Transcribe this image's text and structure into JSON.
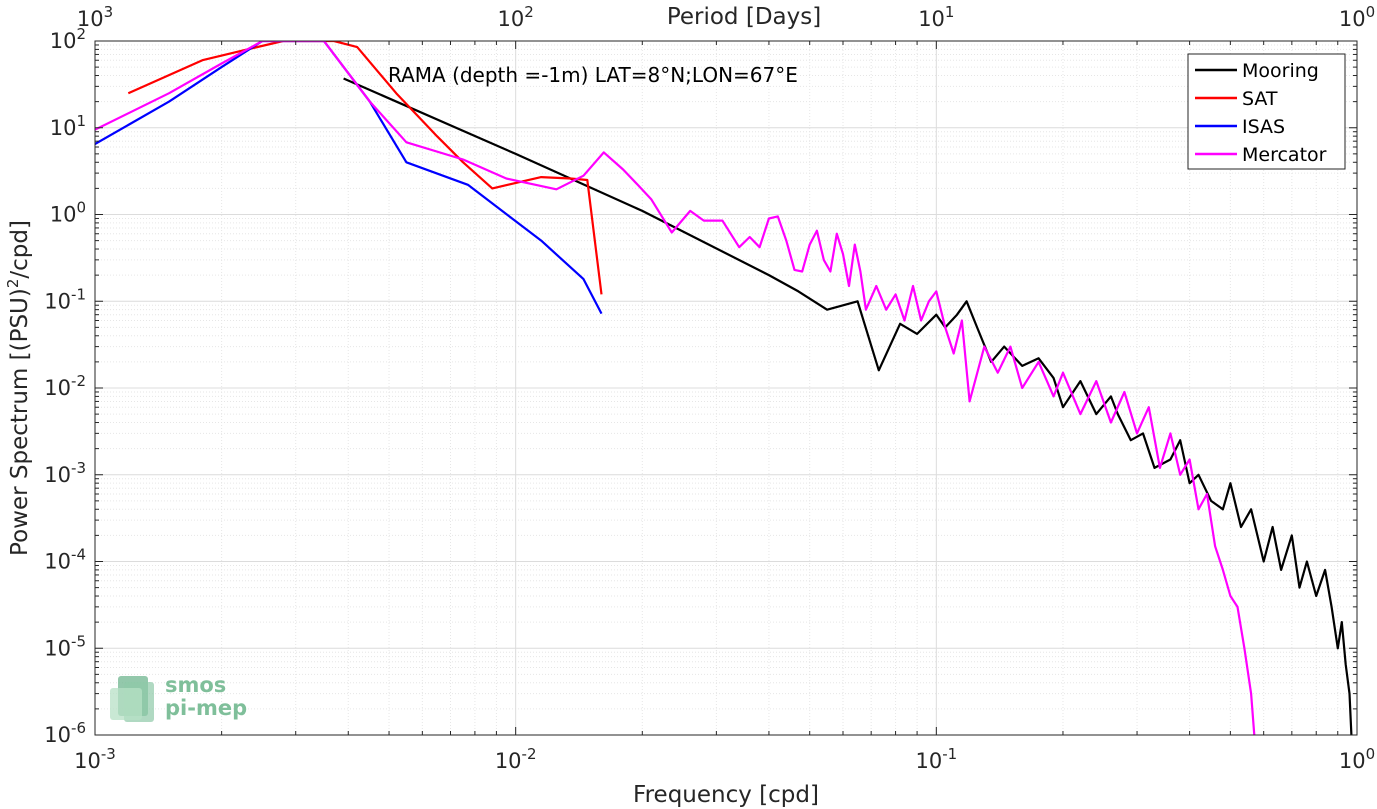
{
  "chart_data": {
    "type": "line",
    "xscale": "log",
    "yscale": "log",
    "xlim": [
      0.001,
      1
    ],
    "ylim": [
      1e-06,
      100
    ],
    "xlabel": "Frequency [cpd]",
    "ylabel": "Power Spectrum [(PSU)",
    "ylabel_sup": "2",
    "ylabel_tail": "/cpd]",
    "top_axis_label": "Period [Days]",
    "grid": true,
    "legend_position": "top-right",
    "annotation": "RAMA (depth =-1m) LAT=8°N;LON=67°E",
    "x_ticks": [
      {
        "value": 0.001,
        "base": "10",
        "exp": "-3"
      },
      {
        "value": 0.01,
        "base": "10",
        "exp": "-2"
      },
      {
        "value": 0.1,
        "base": "10",
        "exp": "-1"
      },
      {
        "value": 1,
        "base": "10",
        "exp": "0"
      }
    ],
    "top_ticks": [
      {
        "value": 0.001,
        "base": "10",
        "exp": "3"
      },
      {
        "value": 0.01,
        "base": "10",
        "exp": "2"
      },
      {
        "value": 0.1,
        "base": "10",
        "exp": "1"
      },
      {
        "value": 1,
        "base": "10",
        "exp": "0"
      }
    ],
    "y_ticks": [
      {
        "value": 100,
        "base": "10",
        "exp": "2"
      },
      {
        "value": 10,
        "base": "10",
        "exp": "1"
      },
      {
        "value": 1,
        "base": "10",
        "exp": "0"
      },
      {
        "value": 0.1,
        "base": "10",
        "exp": "-1"
      },
      {
        "value": 0.01,
        "base": "10",
        "exp": "-2"
      },
      {
        "value": 0.001,
        "base": "10",
        "exp": "-3"
      },
      {
        "value": 0.0001,
        "base": "10",
        "exp": "-4"
      },
      {
        "value": 1e-05,
        "base": "10",
        "exp": "-5"
      },
      {
        "value": 1e-06,
        "base": "10",
        "exp": "-6"
      }
    ],
    "series": [
      {
        "name": "Mooring",
        "color": "#000000",
        "points": [
          [
            0.0039,
            37
          ],
          [
            0.01,
            5
          ],
          [
            0.02,
            1.1
          ],
          [
            0.04,
            0.2
          ],
          [
            0.047,
            0.13
          ],
          [
            0.055,
            0.08
          ],
          [
            0.065,
            0.1
          ],
          [
            0.073,
            0.016
          ],
          [
            0.082,
            0.055
          ],
          [
            0.09,
            0.042
          ],
          [
            0.1,
            0.07
          ],
          [
            0.105,
            0.05
          ],
          [
            0.112,
            0.07
          ],
          [
            0.118,
            0.1
          ],
          [
            0.125,
            0.05
          ],
          [
            0.135,
            0.02
          ],
          [
            0.145,
            0.03
          ],
          [
            0.16,
            0.018
          ],
          [
            0.175,
            0.022
          ],
          [
            0.19,
            0.013
          ],
          [
            0.2,
            0.006
          ],
          [
            0.22,
            0.012
          ],
          [
            0.24,
            0.005
          ],
          [
            0.26,
            0.008
          ],
          [
            0.27,
            0.005
          ],
          [
            0.29,
            0.0025
          ],
          [
            0.31,
            0.003
          ],
          [
            0.33,
            0.0012
          ],
          [
            0.36,
            0.0015
          ],
          [
            0.38,
            0.0025
          ],
          [
            0.4,
            0.0008
          ],
          [
            0.42,
            0.001
          ],
          [
            0.45,
            0.0005
          ],
          [
            0.48,
            0.0004
          ],
          [
            0.5,
            0.0008
          ],
          [
            0.53,
            0.00025
          ],
          [
            0.56,
            0.0004
          ],
          [
            0.6,
            0.0001
          ],
          [
            0.63,
            0.00025
          ],
          [
            0.66,
            8e-05
          ],
          [
            0.7,
            0.0002
          ],
          [
            0.73,
            5e-05
          ],
          [
            0.76,
            0.0001
          ],
          [
            0.8,
            4e-05
          ],
          [
            0.84,
            8e-05
          ],
          [
            0.87,
            3e-05
          ],
          [
            0.9,
            1e-05
          ],
          [
            0.92,
            2e-05
          ],
          [
            0.94,
            6.5e-06
          ],
          [
            0.96,
            3e-06
          ],
          [
            0.97,
            1e-06
          ]
        ]
      },
      {
        "name": "SAT",
        "color": "#ff0000",
        "points": [
          [
            0.0012,
            25
          ],
          [
            0.0018,
            60
          ],
          [
            0.0023,
            80
          ],
          [
            0.0028,
            100
          ],
          [
            0.0037,
            100
          ],
          [
            0.0042,
            85
          ],
          [
            0.0052,
            25
          ],
          [
            0.0065,
            8
          ],
          [
            0.0075,
            4
          ],
          [
            0.0088,
            2
          ],
          [
            0.0115,
            2.7
          ],
          [
            0.0135,
            2.6
          ],
          [
            0.0148,
            2.5
          ],
          [
            0.016,
            0.12
          ]
        ]
      },
      {
        "name": "ISAS",
        "color": "#0000ff",
        "points": [
          [
            0.001,
            6.5
          ],
          [
            0.0015,
            20
          ],
          [
            0.002,
            50
          ],
          [
            0.0025,
            100
          ],
          [
            0.0035,
            100
          ],
          [
            0.0045,
            20
          ],
          [
            0.0055,
            4
          ],
          [
            0.0077,
            2.2
          ],
          [
            0.0115,
            0.5
          ],
          [
            0.0145,
            0.18
          ],
          [
            0.016,
            0.072
          ]
        ]
      },
      {
        "name": "Mercator",
        "color": "#ff00ff",
        "points": [
          [
            0.001,
            9.5
          ],
          [
            0.0015,
            25
          ],
          [
            0.002,
            55
          ],
          [
            0.0025,
            100
          ],
          [
            0.0035,
            100
          ],
          [
            0.0045,
            20
          ],
          [
            0.0055,
            6.8
          ],
          [
            0.0075,
            4.3
          ],
          [
            0.0095,
            2.6
          ],
          [
            0.0125,
            1.95
          ],
          [
            0.0145,
            2.8
          ],
          [
            0.0162,
            5.2
          ],
          [
            0.018,
            3.3
          ],
          [
            0.0195,
            2.2
          ],
          [
            0.021,
            1.5
          ],
          [
            0.0235,
            0.62
          ],
          [
            0.026,
            1.1
          ],
          [
            0.028,
            0.85
          ],
          [
            0.031,
            0.85
          ],
          [
            0.034,
            0.42
          ],
          [
            0.036,
            0.55
          ],
          [
            0.038,
            0.42
          ],
          [
            0.04,
            0.9
          ],
          [
            0.042,
            0.95
          ],
          [
            0.044,
            0.5
          ],
          [
            0.046,
            0.23
          ],
          [
            0.048,
            0.22
          ],
          [
            0.05,
            0.45
          ],
          [
            0.052,
            0.65
          ],
          [
            0.054,
            0.3
          ],
          [
            0.056,
            0.22
          ],
          [
            0.058,
            0.6
          ],
          [
            0.06,
            0.35
          ],
          [
            0.062,
            0.15
          ],
          [
            0.064,
            0.45
          ],
          [
            0.066,
            0.22
          ],
          [
            0.068,
            0.08
          ],
          [
            0.072,
            0.15
          ],
          [
            0.076,
            0.08
          ],
          [
            0.08,
            0.12
          ],
          [
            0.084,
            0.06
          ],
          [
            0.088,
            0.15
          ],
          [
            0.092,
            0.06
          ],
          [
            0.096,
            0.1
          ],
          [
            0.1,
            0.13
          ],
          [
            0.105,
            0.05
          ],
          [
            0.11,
            0.025
          ],
          [
            0.115,
            0.06
          ],
          [
            0.12,
            0.007
          ],
          [
            0.13,
            0.03
          ],
          [
            0.14,
            0.015
          ],
          [
            0.15,
            0.03
          ],
          [
            0.16,
            0.01
          ],
          [
            0.175,
            0.02
          ],
          [
            0.19,
            0.008
          ],
          [
            0.2,
            0.015
          ],
          [
            0.22,
            0.005
          ],
          [
            0.24,
            0.012
          ],
          [
            0.26,
            0.004
          ],
          [
            0.28,
            0.009
          ],
          [
            0.3,
            0.003
          ],
          [
            0.32,
            0.006
          ],
          [
            0.34,
            0.0012
          ],
          [
            0.36,
            0.003
          ],
          [
            0.38,
            0.001
          ],
          [
            0.4,
            0.0015
          ],
          [
            0.42,
            0.0004
          ],
          [
            0.44,
            0.0006
          ],
          [
            0.46,
            0.00015
          ],
          [
            0.48,
            8e-05
          ],
          [
            0.5,
            4e-05
          ],
          [
            0.52,
            3e-05
          ],
          [
            0.54,
            1e-05
          ],
          [
            0.56,
            3e-06
          ],
          [
            0.57,
            1e-06
          ]
        ]
      }
    ]
  },
  "logo": {
    "line1": "smos",
    "line2": "pi-mep"
  }
}
